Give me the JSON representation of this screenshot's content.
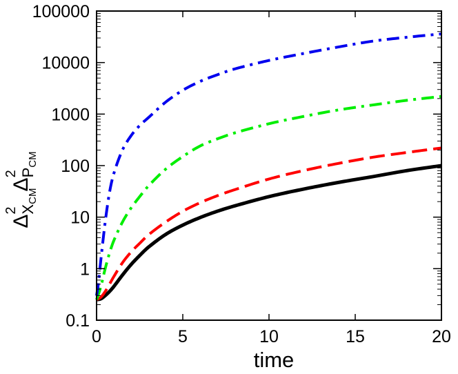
{
  "chart_data": {
    "type": "line",
    "title": "",
    "xlabel": "time",
    "ylabel": {
      "delta": "Δ",
      "superscript": "2",
      "sub_x": "X",
      "sub_x_index": "CM",
      "sub_p": "P",
      "sub_p_index": "CM"
    },
    "xlim": [
      0,
      20
    ],
    "ylim": [
      0.1,
      100000
    ],
    "yscale": "log",
    "grid": false,
    "legend": "none",
    "x_ticks": [
      {
        "value": 0,
        "label": "0"
      },
      {
        "value": 5,
        "label": "5"
      },
      {
        "value": 10,
        "label": "10"
      },
      {
        "value": 15,
        "label": "15"
      },
      {
        "value": 20,
        "label": "20"
      }
    ],
    "y_ticks": [
      {
        "value": 0.1,
        "label": "0.1"
      },
      {
        "value": 1,
        "label": "1"
      },
      {
        "value": 10,
        "label": "10"
      },
      {
        "value": 100,
        "label": "100"
      },
      {
        "value": 1000,
        "label": "1000"
      },
      {
        "value": 10000,
        "label": "10000"
      },
      {
        "value": 100000,
        "label": "100000"
      }
    ],
    "series": [
      {
        "color": "#000000",
        "style": "solid",
        "x": [
          0,
          0.25,
          0.5,
          0.75,
          1,
          1.5,
          2,
          2.5,
          3,
          4,
          5,
          6,
          7,
          8,
          10,
          12,
          14,
          16,
          18,
          20
        ],
        "y": [
          0.25,
          0.26,
          0.3,
          0.36,
          0.45,
          0.75,
          1.2,
          1.8,
          2.6,
          4.6,
          7,
          9.8,
          13,
          16.5,
          25,
          35,
          47,
          61,
          80,
          100
        ]
      },
      {
        "color": "#ff0000",
        "style": "dashed",
        "x": [
          0,
          0.25,
          0.5,
          0.75,
          1,
          1.5,
          2,
          2.5,
          3,
          4,
          5,
          6,
          7,
          8,
          10,
          12,
          14,
          16,
          18,
          20
        ],
        "y": [
          0.25,
          0.28,
          0.36,
          0.5,
          0.7,
          1.3,
          2.1,
          3.1,
          4.5,
          8,
          13,
          19,
          26,
          34,
          55,
          80,
          110,
          145,
          180,
          220
        ]
      },
      {
        "color": "#00ee00",
        "style": "dash-dot",
        "x": [
          0,
          0.25,
          0.5,
          0.75,
          1,
          1.5,
          2,
          2.5,
          3,
          4,
          5,
          6,
          7,
          8,
          10,
          12,
          14,
          16,
          18,
          20
        ],
        "y": [
          0.25,
          0.45,
          1,
          2,
          3.5,
          8,
          15,
          25,
          40,
          85,
          150,
          240,
          330,
          430,
          650,
          900,
          1200,
          1500,
          1850,
          2200
        ]
      },
      {
        "color": "#0000ee",
        "style": "dash-dot",
        "x": [
          0,
          0.1,
          0.25,
          0.5,
          0.75,
          1,
          1.5,
          2,
          2.5,
          3,
          4,
          5,
          6,
          7,
          8,
          10,
          12,
          14,
          16,
          18,
          20
        ],
        "y": [
          0.3,
          0.5,
          1.5,
          8,
          30,
          70,
          200,
          380,
          600,
          850,
          1700,
          2900,
          4300,
          5800,
          7500,
          11000,
          15000,
          20000,
          26000,
          31000,
          36000
        ]
      }
    ]
  }
}
